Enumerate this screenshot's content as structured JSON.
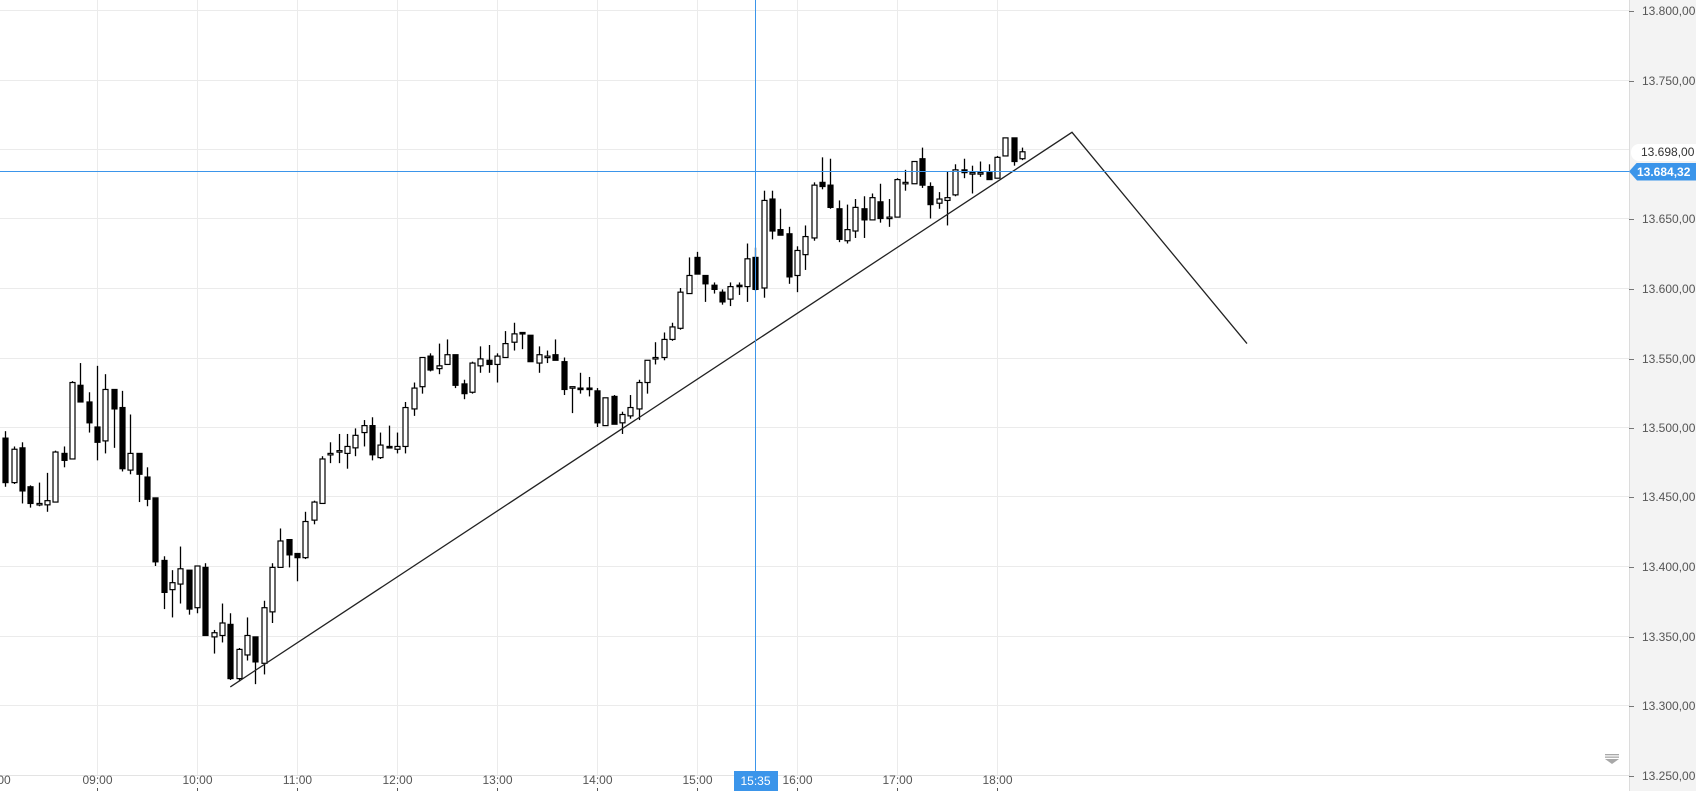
{
  "chart_data": {
    "type": "candlestick",
    "title": "",
    "interval": "5m",
    "xlabel": "",
    "ylabel": "",
    "grid": true,
    "ylim": [
      13245,
      13805
    ],
    "y_ticks": [
      "13.800,00",
      "13.750,00",
      "13.700,00",
      "13.650,00",
      "13.600,00",
      "13.550,00",
      "13.500,00",
      "13.450,00",
      "13.400,00",
      "13.350,00",
      "13.300,00",
      "13.250,00"
    ],
    "y_tick_values": [
      13800,
      13750,
      13700,
      13650,
      13600,
      13550,
      13500,
      13450,
      13400,
      13350,
      13300,
      13250
    ],
    "x_ticks": [
      "00",
      "09:00",
      "10:00",
      "11:00",
      "12:00",
      "13:00",
      "14:00",
      "15:00",
      "16:00",
      "17:00",
      "18:00"
    ],
    "last_price_label": "13.698,00",
    "last_price_value": 13698,
    "crosshair": {
      "price_label": "13.684,32",
      "price": 13684.32,
      "time_label": "15:35"
    },
    "drawing_line": {
      "points": [
        {
          "time": "10:20",
          "price": 13313
        },
        {
          "time": "18:45",
          "price": 13712
        },
        {
          "time": "20:30",
          "price": 13560
        }
      ]
    },
    "candles": [
      [
        13492,
        13497,
        13457,
        13460
      ],
      [
        13460,
        13486,
        13459,
        13484
      ],
      [
        13485,
        13489,
        13445,
        13454
      ],
      [
        13457,
        13458,
        13442,
        13445
      ],
      [
        13445,
        13460,
        13443,
        13445
      ],
      [
        13444,
        13467,
        13439,
        13447
      ],
      [
        13446,
        13483,
        13446,
        13482
      ],
      [
        13481,
        13486,
        13471,
        13476
      ],
      [
        13477,
        13533,
        13477,
        13532
      ],
      [
        13530,
        13546,
        13518,
        13518
      ],
      [
        13518,
        13525,
        13496,
        13503
      ],
      [
        13500,
        13544,
        13476,
        13489
      ],
      [
        13490,
        13538,
        13481,
        13527
      ],
      [
        13527,
        13527,
        13485,
        13513
      ],
      [
        13514,
        13526,
        13468,
        13470
      ],
      [
        13469,
        13509,
        13466,
        13481
      ],
      [
        13481,
        13481,
        13446,
        13466
      ],
      [
        13464,
        13471,
        13443,
        13448
      ],
      [
        13449,
        13449,
        13400,
        13403
      ],
      [
        13404,
        13407,
        13369,
        13381
      ],
      [
        13383,
        13397,
        13363,
        13388
      ],
      [
        13387,
        13414,
        13373,
        13398
      ],
      [
        13397,
        13397,
        13365,
        13369
      ],
      [
        13370,
        13400,
        13366,
        13400
      ],
      [
        13399,
        13402,
        13350,
        13350
      ],
      [
        13349,
        13354,
        13337,
        13352
      ],
      [
        13350,
        13373,
        13345,
        13359
      ],
      [
        13358,
        13366,
        13318,
        13319
      ],
      [
        13319,
        13341,
        13317,
        13340
      ],
      [
        13336,
        13363,
        13332,
        13350
      ],
      [
        13349,
        13349,
        13315,
        13331
      ],
      [
        13330,
        13375,
        13322,
        13370
      ],
      [
        13367,
        13402,
        13359,
        13399
      ],
      [
        13399,
        13427,
        13399,
        13418
      ],
      [
        13419,
        13419,
        13399,
        13408
      ],
      [
        13409,
        13409,
        13389,
        13406
      ],
      [
        13406,
        13439,
        13405,
        13432
      ],
      [
        13433,
        13447,
        13430,
        13446
      ],
      [
        13445,
        13479,
        13445,
        13477
      ],
      [
        13480,
        13489,
        13474,
        13481
      ],
      [
        13483,
        13495,
        13474,
        13483
      ],
      [
        13481,
        13495,
        13470,
        13486
      ],
      [
        13485,
        13499,
        13479,
        13494
      ],
      [
        13496,
        13505,
        13486,
        13501
      ],
      [
        13501,
        13507,
        13476,
        13480
      ],
      [
        13478,
        13496,
        13477,
        13487
      ],
      [
        13486,
        13501,
        13485,
        13485
      ],
      [
        13484,
        13496,
        13481,
        13486
      ],
      [
        13486,
        13518,
        13481,
        13514
      ],
      [
        13513,
        13532,
        13508,
        13528
      ],
      [
        13529,
        13550,
        13524,
        13550
      ],
      [
        13551,
        13553,
        13540,
        13541
      ],
      [
        13542,
        13560,
        13538,
        13544
      ],
      [
        13545,
        13563,
        13545,
        13552
      ],
      [
        13552,
        13552,
        13528,
        13530
      ],
      [
        13531,
        13534,
        13520,
        13524
      ],
      [
        13525,
        13547,
        13524,
        13546
      ],
      [
        13544,
        13558,
        13539,
        13549
      ],
      [
        13548,
        13559,
        13539,
        13545
      ],
      [
        13545,
        13553,
        13532,
        13551
      ],
      [
        13550,
        13569,
        13550,
        13560
      ],
      [
        13561,
        13575,
        13555,
        13567
      ],
      [
        13568,
        13568,
        13556,
        13567
      ],
      [
        13566,
        13566,
        13547,
        13547
      ],
      [
        13546,
        13558,
        13539,
        13552
      ],
      [
        13551,
        13555,
        13546,
        13551
      ],
      [
        13552,
        13563,
        13548,
        13548
      ],
      [
        13547,
        13550,
        13523,
        13527
      ],
      [
        13529,
        13529,
        13510,
        13529
      ],
      [
        13528,
        13539,
        13524,
        13527
      ],
      [
        13528,
        13536,
        13522,
        13527
      ],
      [
        13526,
        13528,
        13500,
        13503
      ],
      [
        13501,
        13521,
        13501,
        13521
      ],
      [
        13522,
        13523,
        13502,
        13502
      ],
      [
        13503,
        13511,
        13495,
        13509
      ],
      [
        13508,
        13523,
        13506,
        13514
      ],
      [
        13513,
        13534,
        13505,
        13532
      ],
      [
        13532,
        13548,
        13524,
        13548
      ],
      [
        13550,
        13561,
        13545,
        13550
      ],
      [
        13550,
        13568,
        13548,
        13563
      ],
      [
        13563,
        13575,
        13562,
        13572
      ],
      [
        13571,
        13600,
        13570,
        13597
      ],
      [
        13596,
        13622,
        13596,
        13609
      ],
      [
        13622,
        13626,
        13610,
        13610
      ],
      [
        13609,
        13609,
        13590,
        13603
      ],
      [
        13602,
        13604,
        13596,
        13599
      ],
      [
        13597,
        13599,
        13588,
        13590
      ],
      [
        13592,
        13604,
        13587,
        13601
      ],
      [
        13602,
        13604,
        13595,
        13601
      ],
      [
        13601,
        13632,
        13590,
        13621
      ],
      [
        13622,
        13629,
        13598,
        13599
      ],
      [
        13600,
        13670,
        13593,
        13663
      ],
      [
        13664,
        13670,
        13635,
        13641
      ],
      [
        13642,
        13657,
        13638,
        13638
      ],
      [
        13639,
        13644,
        13603,
        13608
      ],
      [
        13609,
        13630,
        13597,
        13627
      ],
      [
        13624,
        13645,
        13613,
        13637
      ],
      [
        13636,
        13676,
        13634,
        13674
      ],
      [
        13676,
        13694,
        13671,
        13673
      ],
      [
        13674,
        13693,
        13657,
        13658
      ],
      [
        13657,
        13663,
        13633,
        13635
      ],
      [
        13634,
        13660,
        13632,
        13642
      ],
      [
        13641,
        13664,
        13636,
        13658
      ],
      [
        13657,
        13666,
        13636,
        13649
      ],
      [
        13649,
        13668,
        13649,
        13665
      ],
      [
        13662,
        13675,
        13647,
        13650
      ],
      [
        13650,
        13664,
        13644,
        13651
      ],
      [
        13651,
        13679,
        13651,
        13678
      ],
      [
        13676,
        13685,
        13670,
        13676
      ],
      [
        13675,
        13691,
        13675,
        13691
      ],
      [
        13693,
        13701,
        13672,
        13674
      ],
      [
        13673,
        13676,
        13650,
        13660
      ],
      [
        13661,
        13669,
        13657,
        13664
      ],
      [
        13663,
        13684,
        13645,
        13665
      ],
      [
        13667,
        13689,
        13666,
        13685
      ],
      [
        13685,
        13693,
        13679,
        13683
      ],
      [
        13683,
        13688,
        13668,
        13683
      ],
      [
        13683,
        13691,
        13680,
        13683
      ],
      [
        13683,
        13689,
        13678,
        13678
      ],
      [
        13679,
        13695,
        13679,
        13694
      ],
      [
        13695,
        13708,
        13695,
        13708
      ],
      [
        13708,
        13708,
        13688,
        13691
      ],
      [
        13693,
        13701,
        13692,
        13698
      ]
    ],
    "candle_fields": [
      "open",
      "high",
      "low",
      "close"
    ],
    "first_candle_time": "08:05"
  },
  "colors": {
    "background": "#ffffff",
    "grid": "#ebebeb",
    "candle": "#000000",
    "crosshair": "#3b95ea",
    "axis_panel": "#f3f3f3",
    "trend_line": "#222222"
  }
}
